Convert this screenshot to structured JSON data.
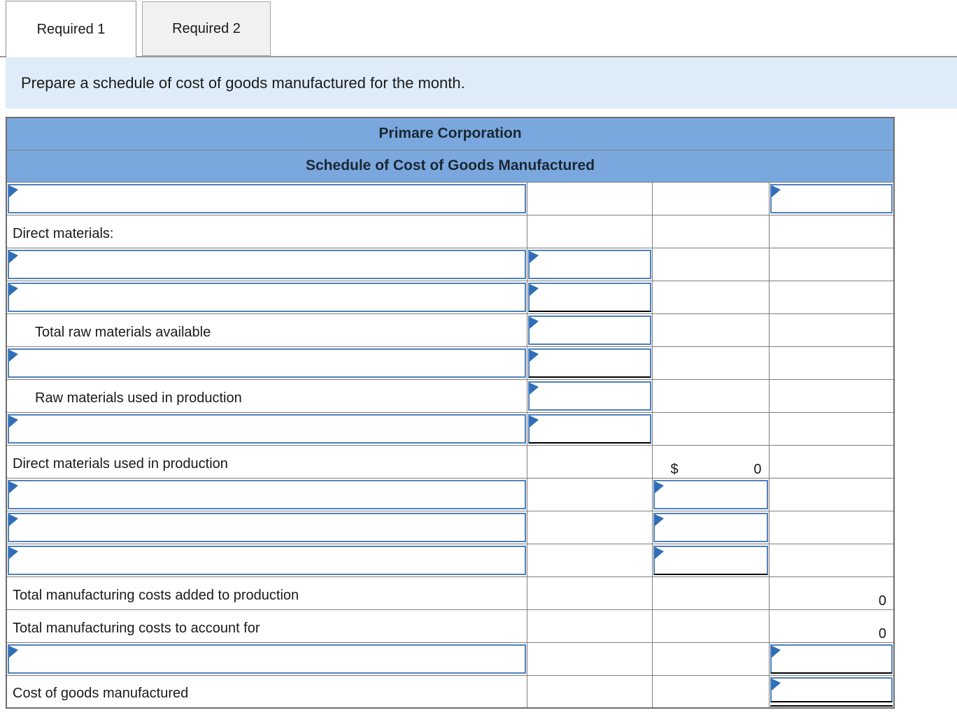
{
  "tabs": [
    {
      "label": "Required 1",
      "active": true
    },
    {
      "label": "Required 2",
      "active": false
    }
  ],
  "instruction": "Prepare a schedule of cost of goods manufactured for the month.",
  "table": {
    "title": "Primare Corporation",
    "subtitle": "Schedule of Cost of Goods Manufactured",
    "rows": [
      {
        "c1": {
          "input": "plain"
        },
        "c4": {
          "input": "plain"
        }
      },
      {
        "c1": {
          "label": "Direct materials:",
          "indent": 0
        }
      },
      {
        "c1": {
          "input": "plain"
        },
        "c2": {
          "input": "plain"
        }
      },
      {
        "c1": {
          "input": "plain"
        },
        "c2": {
          "input": "underline"
        }
      },
      {
        "c1": {
          "label": "Total raw materials available",
          "indent": 1
        },
        "c2": {
          "input": "plain"
        }
      },
      {
        "c1": {
          "input": "plain"
        },
        "c2": {
          "input": "underline"
        }
      },
      {
        "c1": {
          "label": "Raw materials used in production",
          "indent": 1
        },
        "c2": {
          "input": "plain"
        }
      },
      {
        "c1": {
          "input": "plain"
        },
        "c2": {
          "input": "underline"
        }
      },
      {
        "c1": {
          "label": "Direct materials used in production",
          "indent": 0
        },
        "c3": {
          "prefix": "$",
          "value": "0"
        }
      },
      {
        "c1": {
          "input": "plain"
        },
        "c3": {
          "input": "plain"
        }
      },
      {
        "c1": {
          "input": "plain"
        },
        "c3": {
          "input": "plain"
        }
      },
      {
        "c1": {
          "input": "plain"
        },
        "c3": {
          "input": "underline"
        }
      },
      {
        "c1": {
          "label": "Total manufacturing costs added to production",
          "indent": 0
        },
        "c4": {
          "value": "0",
          "cell_underline": true
        }
      },
      {
        "c1": {
          "label": "Total manufacturing costs to account for",
          "indent": 0
        },
        "c4": {
          "value": "0"
        }
      },
      {
        "c1": {
          "input": "plain"
        },
        "c4": {
          "input": "underline"
        }
      },
      {
        "c1": {
          "label": "Cost of goods manufactured",
          "indent": 0
        },
        "c4": {
          "input": "double"
        }
      }
    ]
  },
  "colors": {
    "header_blue": "#7aa8de",
    "banner_blue": "#ddecf8",
    "input_border_blue": "#4f81bd",
    "flag_blue": "#2e6fb7",
    "grid_gray": "#7f7f7f",
    "tab_inactive_bg": "#f1f1f1",
    "rule_black": "#000000"
  },
  "icons": {
    "dropdown_flag": "right-pointing-flag"
  }
}
